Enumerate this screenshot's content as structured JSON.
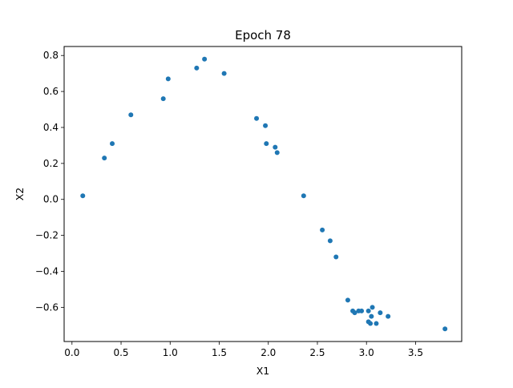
{
  "chart_data": {
    "type": "scatter",
    "title": "Epoch 78",
    "xlabel": "X1",
    "ylabel": "X2",
    "xlim": [
      -0.08,
      3.97
    ],
    "ylim": [
      -0.79,
      0.85
    ],
    "xticks": [
      0.0,
      0.5,
      1.0,
      1.5,
      2.0,
      2.5,
      3.0,
      3.5
    ],
    "xtick_labels": [
      "0.0",
      "0.5",
      "1.0",
      "1.5",
      "2.0",
      "2.5",
      "3.0",
      "3.5"
    ],
    "yticks": [
      -0.6,
      -0.4,
      -0.2,
      0.0,
      0.2,
      0.4,
      0.6,
      0.8
    ],
    "ytick_labels": [
      "−0.6",
      "−0.4",
      "−0.2",
      "0.0",
      "0.2",
      "0.4",
      "0.6",
      "0.8"
    ],
    "grid": false,
    "legend": false,
    "marker_color": "#1f77b4",
    "points": [
      {
        "x": 0.11,
        "y": 0.02
      },
      {
        "x": 0.33,
        "y": 0.23
      },
      {
        "x": 0.41,
        "y": 0.31
      },
      {
        "x": 0.6,
        "y": 0.47
      },
      {
        "x": 0.93,
        "y": 0.56
      },
      {
        "x": 0.98,
        "y": 0.67
      },
      {
        "x": 1.27,
        "y": 0.73
      },
      {
        "x": 1.35,
        "y": 0.78
      },
      {
        "x": 1.55,
        "y": 0.7
      },
      {
        "x": 1.88,
        "y": 0.45
      },
      {
        "x": 1.97,
        "y": 0.41
      },
      {
        "x": 1.98,
        "y": 0.31
      },
      {
        "x": 2.07,
        "y": 0.29
      },
      {
        "x": 2.09,
        "y": 0.26
      },
      {
        "x": 2.36,
        "y": 0.02
      },
      {
        "x": 2.55,
        "y": -0.17
      },
      {
        "x": 2.63,
        "y": -0.23
      },
      {
        "x": 2.69,
        "y": -0.32
      },
      {
        "x": 2.81,
        "y": -0.56
      },
      {
        "x": 2.86,
        "y": -0.62
      },
      {
        "x": 2.88,
        "y": -0.63
      },
      {
        "x": 2.92,
        "y": -0.62
      },
      {
        "x": 2.95,
        "y": -0.62
      },
      {
        "x": 3.02,
        "y": -0.62
      },
      {
        "x": 3.02,
        "y": -0.68
      },
      {
        "x": 3.04,
        "y": -0.69
      },
      {
        "x": 3.05,
        "y": -0.65
      },
      {
        "x": 3.06,
        "y": -0.6
      },
      {
        "x": 3.1,
        "y": -0.69
      },
      {
        "x": 3.14,
        "y": -0.63
      },
      {
        "x": 3.22,
        "y": -0.65
      },
      {
        "x": 3.8,
        "y": -0.72
      }
    ]
  }
}
